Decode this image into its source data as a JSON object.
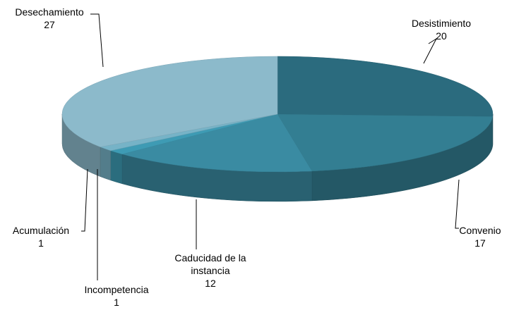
{
  "chart_data": {
    "type": "pie3d",
    "categories": [
      "Desistimiento",
      "Convenio",
      "Caducidad de la instancia",
      "Incompetencia",
      "Acumulación",
      "Desechamiento"
    ],
    "values": [
      20,
      17,
      12,
      1,
      1,
      27
    ],
    "colors": [
      "#2b6b7e",
      "#337e92",
      "#3a8ba2",
      "#3e9bb4",
      "#76b3c7",
      "#8cbacb"
    ]
  }
}
